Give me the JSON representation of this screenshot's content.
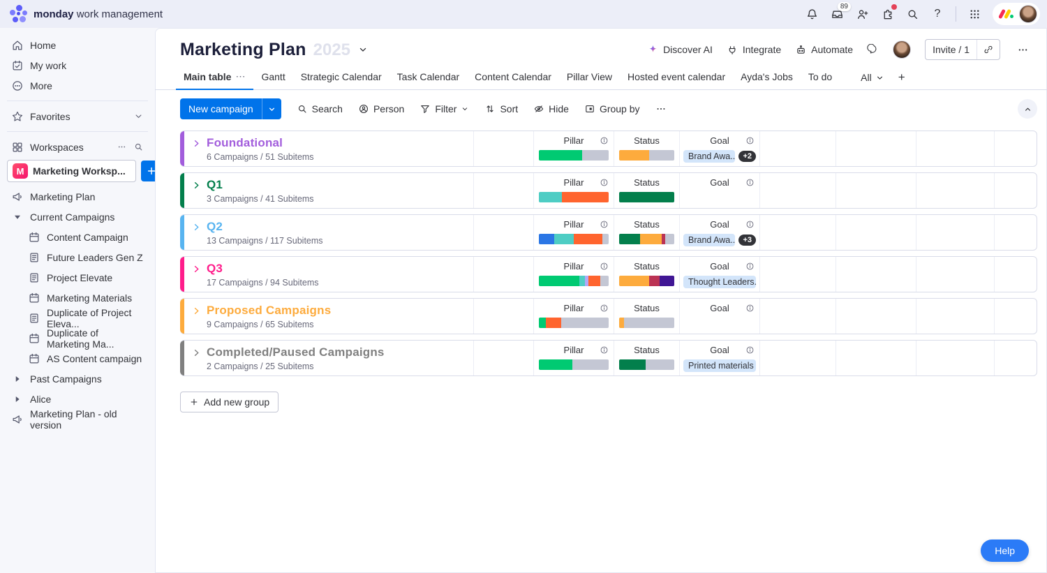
{
  "topbar": {
    "brand_bold": "monday",
    "brand_rest": "work management",
    "inbox_badge": "89",
    "icons": [
      "notifications-bell",
      "inbox",
      "invite-members",
      "apps-marketplace",
      "search",
      "help",
      "app-grid",
      "monday-logo-mark",
      "user-avatar"
    ]
  },
  "sidebar": {
    "top_items": [
      {
        "label": "Home",
        "icon": "home"
      },
      {
        "label": "My work",
        "icon": "mywork"
      },
      {
        "label": "More",
        "icon": "more"
      }
    ],
    "favorites_label": "Favorites",
    "workspaces_label": "Workspaces",
    "workspace": {
      "initial": "M",
      "name": "Marketing Worksp..."
    },
    "items": [
      {
        "label": "Marketing Plan",
        "icon": "megaphone",
        "indent": 0
      },
      {
        "label": "Current Campaigns",
        "icon": "caret-down",
        "indent": 0
      },
      {
        "label": "Content Campaign",
        "icon": "calendar",
        "indent": 1
      },
      {
        "label": "Future Leaders Gen Z",
        "icon": "doc",
        "indent": 1
      },
      {
        "label": "Project Elevate",
        "icon": "doc",
        "indent": 1
      },
      {
        "label": "Marketing Materials",
        "icon": "calendar",
        "indent": 1
      },
      {
        "label": "Duplicate of Project Eleva...",
        "icon": "doc",
        "indent": 1
      },
      {
        "label": "Duplicate of Marketing Ma...",
        "icon": "calendar",
        "indent": 1
      },
      {
        "label": "AS Content campaign",
        "icon": "calendar",
        "indent": 1
      },
      {
        "label": "Past Campaigns",
        "icon": "caret-right",
        "indent": 0
      },
      {
        "label": "Alice",
        "icon": "caret-right",
        "indent": 0
      },
      {
        "label": "Marketing Plan - old version",
        "icon": "megaphone",
        "indent": 0
      }
    ]
  },
  "header": {
    "title": "Marketing Plan",
    "ghost": "2025",
    "discover_ai": "Discover AI",
    "integrate": "Integrate",
    "automate": "Automate",
    "invite": "Invite / 1"
  },
  "tabs": {
    "items": [
      "Main table",
      "Gantt",
      "Strategic Calendar",
      "Task Calendar",
      "Content Calendar",
      "Pillar View",
      "Hosted event calendar",
      "Ayda's Jobs",
      "To do"
    ],
    "active_index": 0,
    "all_label": "All"
  },
  "toolbar": {
    "new_campaign": "New campaign",
    "search": "Search",
    "person": "Person",
    "filter": "Filter",
    "sort": "Sort",
    "hide": "Hide",
    "group_by": "Group by"
  },
  "columns": {
    "pillar": "Pillar",
    "status": "Status",
    "goal": "Goal"
  },
  "groups": [
    {
      "name": "Foundational",
      "color": "#a25ddc",
      "subtitle": "6 Campaigns / 51 Subitems",
      "pillar": [
        {
          "color": "#00ca72",
          "pct": 62
        },
        {
          "color": "#c4c7d4",
          "pct": 38
        }
      ],
      "status": [
        {
          "color": "#fdab3d",
          "pct": 55
        },
        {
          "color": "#c4c7d4",
          "pct": 45
        }
      ],
      "goal_badge": "Brand Awa...",
      "goal_more": "+2"
    },
    {
      "name": "Q1",
      "color": "#037f4c",
      "subtitle": "3 Campaigns / 41 Subitems",
      "pillar": [
        {
          "color": "#4ecdc4",
          "pct": 33
        },
        {
          "color": "#ff642e",
          "pct": 67
        }
      ],
      "status": [
        {
          "color": "#037f4c",
          "pct": 100
        }
      ],
      "goal_badge": "",
      "goal_more": ""
    },
    {
      "name": "Q2",
      "color": "#58b4f0",
      "subtitle": "13 Campaigns / 117 Subitems",
      "pillar": [
        {
          "color": "#2b76e5",
          "pct": 22
        },
        {
          "color": "#4ecdc4",
          "pct": 28
        },
        {
          "color": "#ff642e",
          "pct": 41
        },
        {
          "color": "#c4c7d4",
          "pct": 9
        }
      ],
      "status": [
        {
          "color": "#037f4c",
          "pct": 38
        },
        {
          "color": "#fdab3d",
          "pct": 39
        },
        {
          "color": "#bb3354",
          "pct": 7
        },
        {
          "color": "#c4c7d4",
          "pct": 16
        }
      ],
      "goal_badge": "Brand Awa...",
      "goal_more": "+3"
    },
    {
      "name": "Q3",
      "color": "#ff1d8b",
      "subtitle": "17 Campaigns / 94 Subitems",
      "pillar": [
        {
          "color": "#00ca72",
          "pct": 58
        },
        {
          "color": "#4ecdc4",
          "pct": 8
        },
        {
          "color": "#b3a8f7",
          "pct": 5
        },
        {
          "color": "#ff642e",
          "pct": 17
        },
        {
          "color": "#c4c7d4",
          "pct": 12
        }
      ],
      "status": [
        {
          "color": "#fdab3d",
          "pct": 55
        },
        {
          "color": "#bb3354",
          "pct": 18
        },
        {
          "color": "#401694",
          "pct": 27
        }
      ],
      "goal_badge": "Thought Leaders...",
      "goal_more": ""
    },
    {
      "name": "Proposed Campaigns",
      "color": "#fdab3d",
      "subtitle": "9 Campaigns / 65 Subitems",
      "pillar": [
        {
          "color": "#00ca72",
          "pct": 10
        },
        {
          "color": "#ff642e",
          "pct": 22
        },
        {
          "color": "#c4c7d4",
          "pct": 68
        }
      ],
      "status": [
        {
          "color": "#fdab3d",
          "pct": 9
        },
        {
          "color": "#c4c7d4",
          "pct": 91
        }
      ],
      "goal_badge": "",
      "goal_more": ""
    },
    {
      "name": "Completed/Paused Campaigns",
      "color": "#808080",
      "subtitle": "2 Campaigns / 25 Subitems",
      "pillar": [
        {
          "color": "#00ca72",
          "pct": 48
        },
        {
          "color": "#c4c7d4",
          "pct": 52
        }
      ],
      "status": [
        {
          "color": "#037f4c",
          "pct": 48
        },
        {
          "color": "#c4c7d4",
          "pct": 52
        }
      ],
      "goal_badge": "Printed materials",
      "goal_more": ""
    }
  ],
  "footer": {
    "add_group": "Add new group",
    "help": "Help"
  },
  "colors": {
    "accent": "#0073ea",
    "goal_badge_bg": "#d3e5fa",
    "more_pill_bg": "#323338"
  }
}
